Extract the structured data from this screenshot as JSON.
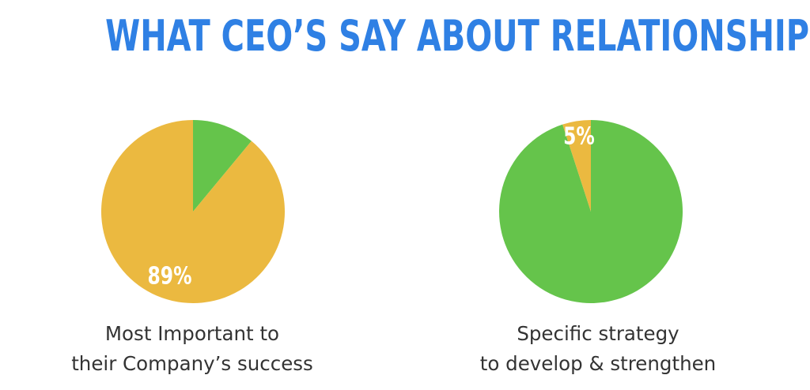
{
  "title": "WHAT CEO’S SAY ABOUT RELATIONSHIPS",
  "colors": {
    "title": "#2f80e4",
    "yellow": "#ebb940",
    "green": "#65c44b",
    "label": "#ffffff",
    "caption": "#333333"
  },
  "chart_data": [
    {
      "type": "pie",
      "title": "",
      "caption_lines": [
        "Most Important to",
        "their Company’s success"
      ],
      "slices": [
        {
          "value": 11,
          "color": "#65c44b",
          "label": ""
        },
        {
          "value": 89,
          "color": "#ebb940",
          "label": "89%"
        }
      ]
    },
    {
      "type": "pie",
      "title": "",
      "caption_lines": [
        "Specific strategy",
        "to develop & strengthen"
      ],
      "slices": [
        {
          "value": 95,
          "color": "#65c44b",
          "label": ""
        },
        {
          "value": 5,
          "color": "#ebb940",
          "label": "5%"
        }
      ]
    }
  ]
}
